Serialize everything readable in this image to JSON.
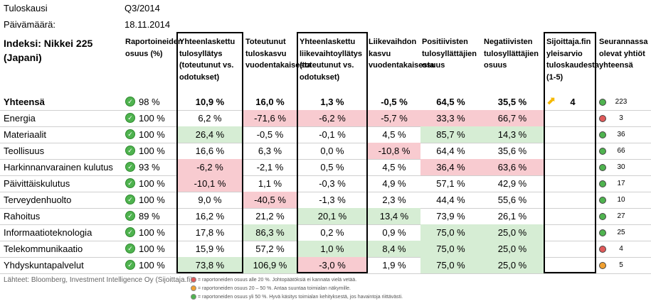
{
  "meta": {
    "period_label": "Tuloskausi",
    "period_value": "Q3/2014",
    "date_label": "Päivämäärä:",
    "date_value": "18.11.2014"
  },
  "index_title": "Indeksi: Nikkei 225 (Japani)",
  "headers": {
    "reported": "Raportoineiden osuus (%)",
    "eps_surprise": "Yhteenlaskettu tulosyllätys (toteutunut vs. odotukset)",
    "eps_growth": "Toteutunut tuloskasvu vuodentakaisesta",
    "rev_surprise": "Yhteenlaskettu liikevaihtoyllätys (toteutunut vs. odotukset)",
    "rev_growth": "Liikevaihdon kasvu vuodentakaisesta",
    "positive": "Positiivisten tulosyllättäjien osuus",
    "negative": "Negatiivisten tulosyllättäjien osuus",
    "rating": "Sijoittaja.fin yleisarvio tuloskaudesta (1-5)",
    "followed": "Seurannassa olevat yhtiöt yhteensä"
  },
  "total": {
    "name": "Yhteensä",
    "reported": "98 %",
    "eps_surprise": "10,9 %",
    "eps_growth": "16,0 %",
    "rev_surprise": "1,3 %",
    "rev_growth": "-0,5 %",
    "positive": "64,5 %",
    "negative": "35,5 %",
    "rating": "4",
    "followed": "223",
    "status": "green"
  },
  "rows": [
    {
      "name": "Energia",
      "reported": "100 %",
      "eps_surprise": "6,2 %",
      "eps_growth": "-71,6 %",
      "rev_surprise": "-6,2 %",
      "rev_growth": "-5,7 %",
      "positive": "33,3 %",
      "negative": "66,7 %",
      "followed": "3",
      "status": "red"
    },
    {
      "name": "Materiaalit",
      "reported": "100 %",
      "eps_surprise": "26,4 %",
      "eps_growth": "-0,5 %",
      "rev_surprise": "-0,1 %",
      "rev_growth": "4,5 %",
      "positive": "85,7 %",
      "negative": "14,3 %",
      "followed": "36",
      "status": "green"
    },
    {
      "name": "Teollisuus",
      "reported": "100 %",
      "eps_surprise": "16,6 %",
      "eps_growth": "6,3 %",
      "rev_surprise": "0,0 %",
      "rev_growth": "-10,8 %",
      "positive": "64,4 %",
      "negative": "35,6 %",
      "followed": "66",
      "status": "green"
    },
    {
      "name": "Harkinnanvarainen kulutus",
      "reported": "93 %",
      "eps_surprise": "-6,2 %",
      "eps_growth": "-2,1 %",
      "rev_surprise": "0,5 %",
      "rev_growth": "4,5 %",
      "positive": "36,4 %",
      "negative": "63,6 %",
      "followed": "30",
      "status": "green"
    },
    {
      "name": "Päivittäiskulutus",
      "reported": "100 %",
      "eps_surprise": "-10,1 %",
      "eps_growth": "1,1 %",
      "rev_surprise": "-0,3 %",
      "rev_growth": "4,9 %",
      "positive": "57,1 %",
      "negative": "42,9 %",
      "followed": "17",
      "status": "green"
    },
    {
      "name": "Terveydenhuolto",
      "reported": "100 %",
      "eps_surprise": "9,0 %",
      "eps_growth": "-40,5 %",
      "rev_surprise": "-1,3 %",
      "rev_growth": "2,3 %",
      "positive": "44,4 %",
      "negative": "55,6 %",
      "followed": "10",
      "status": "green"
    },
    {
      "name": "Rahoitus",
      "reported": "89 %",
      "eps_surprise": "16,2 %",
      "eps_growth": "21,2 %",
      "rev_surprise": "20,1 %",
      "rev_growth": "13,4 %",
      "positive": "73,9 %",
      "negative": "26,1 %",
      "followed": "27",
      "status": "green"
    },
    {
      "name": "Informaatioteknologia",
      "reported": "100 %",
      "eps_surprise": "17,8 %",
      "eps_growth": "86,3 %",
      "rev_surprise": "0,2 %",
      "rev_growth": "0,9 %",
      "positive": "75,0 %",
      "negative": "25,0 %",
      "followed": "25",
      "status": "green"
    },
    {
      "name": "Telekommunikaatio",
      "reported": "100 %",
      "eps_surprise": "15,9 %",
      "eps_growth": "57,2 %",
      "rev_surprise": "1,0 %",
      "rev_growth": "8,4 %",
      "positive": "75,0 %",
      "negative": "25,0 %",
      "followed": "4",
      "status": "red"
    },
    {
      "name": "Yhdyskuntapalvelut",
      "reported": "100 %",
      "eps_surprise": "73,8 %",
      "eps_growth": "106,9 %",
      "rev_surprise": "-3,0 %",
      "rev_growth": "1,9 %",
      "positive": "75,0 %",
      "negative": "25,0 %",
      "followed": "5",
      "status": "orange"
    }
  ],
  "source": "Lähteet: Bloomberg, Investment Intelligence Oy (Sijoittaja.fi)",
  "legend": [
    {
      "text": "= raportoneiden osuus alle 20 %. Johtopäätöksiä ei kannata vielä vetää.",
      "color": "#e05a5a"
    },
    {
      "text": "= raportoneiden osuus 20 – 50 %. Antaa suuntaa toimialan näkymille.",
      "color": "#f0a030"
    },
    {
      "text": "= raportoneiden osuus yli 50 %. Hyvä käsitys toimialan kehityksestä, jos havaintoja riittävästi.",
      "color": "#4fb34f"
    }
  ],
  "colors": {
    "red": "#e05a5a",
    "green": "#4fb34f",
    "orange": "#f0a030",
    "highlight_green": "#d6edd4",
    "highlight_red": "#f8cbd0"
  }
}
